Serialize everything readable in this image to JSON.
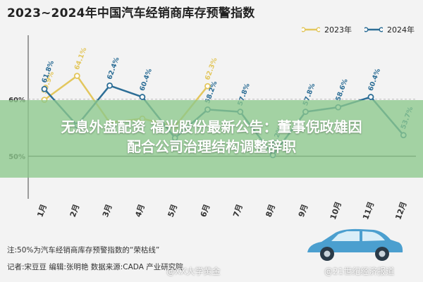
{
  "title": "2023~2024年中国汽车经销商库存预警指数",
  "banner": {
    "line1": "无息外盘配资 福光股份最新公告：董事倪政雄因",
    "line2": "配合公司治理结构调整辞职"
  },
  "footer": {
    "note": "注:50%为汽车经销商库存预警指数的“荣枯线”",
    "credits": "记者:宋豆豆   编辑:张明艳   数据来源:CADA 产业研究院"
  },
  "watermarks": {
    "left": "@XX大学黄金",
    "right": "@21世纪经济报道"
  },
  "colors": {
    "y2023": "#e3c75e",
    "y2024": "#2d6e96",
    "banner": "#8cc88c"
  },
  "chart_data": {
    "type": "line",
    "title": "2023~2024年中国汽车经销商库存预警指数",
    "categories": [
      "1月",
      "2月",
      "3月",
      "4月",
      "5月",
      "6月",
      "7月",
      "8月",
      "9月",
      "10月",
      "11月",
      "12月"
    ],
    "series": [
      {
        "name": "2023年",
        "values": [
          59.9,
          64.1,
          55.9,
          56.6,
          55.2,
          62.3,
          null,
          null,
          null,
          null,
          null,
          null
        ],
        "labels": [
          "59.9%",
          "64.1%",
          "",
          "",
          "",
          "62.3%",
          "",
          "",
          "",
          "",
          "",
          ""
        ]
      },
      {
        "name": "2024年",
        "values": [
          61.8,
          55.4,
          62.4,
          60.4,
          53.2,
          58.2,
          57.8,
          50.2,
          57.8,
          58.6,
          60.4,
          53.7
        ],
        "labels": [
          "61.8%",
          "",
          "62.4%",
          "60.4%",
          "",
          "58.2%",
          "57.8%",
          "50.2%",
          "57.8%",
          "58.6%",
          "60.4%",
          "53.7%"
        ]
      }
    ],
    "yticks": [
      {
        "value": 50,
        "label": "50%"
      },
      {
        "value": 60,
        "label": "60%"
      }
    ],
    "ylim": [
      45,
      70
    ],
    "reference_line": {
      "value": 50
    },
    "legend": "top-right"
  }
}
